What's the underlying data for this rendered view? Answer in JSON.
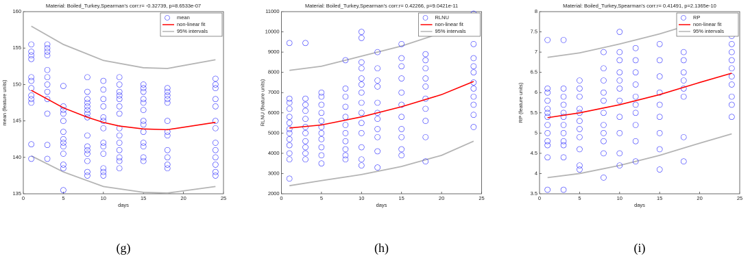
{
  "chart_data": [
    {
      "type": "scatter",
      "panel_label": "(g)",
      "title": "Material: Boiled_Turkey,Spearman's corr:r= -0.32739, p=8.6533e-07",
      "xlabel": "days",
      "ylabel": "mean (feature units)",
      "xlim": [
        0,
        25
      ],
      "xticks": [
        0,
        5,
        10,
        15,
        20,
        25
      ],
      "ylim": [
        135,
        160
      ],
      "yticks": [
        135,
        140,
        145,
        150,
        155,
        160
      ],
      "points": {
        "name": "mean",
        "color": "#3333ff",
        "x": [
          1,
          1,
          1,
          1,
          1,
          1,
          1,
          1,
          1,
          1,
          1,
          1,
          3,
          3,
          3,
          3,
          3,
          3,
          3,
          3,
          3,
          3,
          3,
          3,
          5,
          5,
          5,
          5,
          5,
          5,
          5,
          5,
          5,
          5,
          5,
          5,
          5,
          8,
          8,
          8,
          8,
          8,
          8,
          8,
          8,
          8,
          8,
          8,
          8,
          8,
          8,
          8,
          10,
          10,
          10,
          10,
          10,
          10,
          10,
          10,
          10,
          10,
          10,
          10,
          10,
          12,
          12,
          12,
          12,
          12,
          12,
          12,
          12,
          12,
          12,
          12,
          12,
          12,
          12,
          15,
          15,
          15,
          15,
          15,
          15,
          15,
          15,
          15,
          15,
          15,
          15,
          15,
          18,
          18,
          18,
          18,
          18,
          18,
          18,
          18,
          18,
          18,
          18,
          18,
          24,
          24,
          24,
          24,
          24,
          24,
          24,
          24,
          24,
          24,
          24,
          24,
          24
        ],
        "y": [
          155.5,
          154.5,
          154,
          153.5,
          151,
          150.5,
          149.5,
          148.5,
          148,
          147.5,
          141.8,
          139.8,
          155.5,
          155,
          154.5,
          154,
          152,
          151,
          150,
          149,
          148,
          146,
          141.7,
          139.8,
          149.8,
          147,
          146.5,
          146,
          145,
          143.5,
          142.5,
          142,
          141.5,
          140.5,
          139,
          138.5,
          135.5,
          151,
          149,
          148,
          147.5,
          147,
          146.5,
          146,
          145.5,
          143,
          141.5,
          141,
          140.5,
          139.5,
          138,
          137.5,
          150.5,
          149.3,
          148,
          147,
          145.5,
          145,
          144,
          142,
          141.5,
          140.5,
          138.5,
          138,
          137.5,
          151,
          150,
          149,
          148.5,
          148,
          147,
          146,
          144,
          143,
          142,
          141,
          140,
          139.5,
          138.5,
          150,
          149.5,
          149,
          148,
          147.5,
          146.5,
          145,
          144.5,
          143.5,
          142,
          141.5,
          140,
          139.5,
          149.5,
          149,
          148.5,
          148,
          147.5,
          145,
          143.5,
          143,
          141,
          140,
          139,
          138.5,
          150.8,
          150,
          149.5,
          148,
          147,
          145,
          144,
          142,
          141,
          140,
          139,
          138,
          137.5
        ]
      },
      "fit": {
        "name": "non-linear fit",
        "color": "#ff0000",
        "x": [
          1,
          5,
          8,
          10,
          12,
          15,
          18,
          24
        ],
        "y": [
          149.2,
          146.8,
          145.5,
          144.8,
          144.3,
          143.9,
          143.8,
          144.8
        ]
      },
      "intervals": {
        "name": "95% intervals",
        "color": "#b4b4b4",
        "x": [
          1,
          5,
          10,
          15,
          18,
          24
        ],
        "upper": [
          158,
          155.5,
          153.3,
          152.3,
          152.2,
          153.4
        ],
        "lower": [
          140.2,
          138,
          136,
          135.2,
          135.1,
          136
        ]
      }
    },
    {
      "type": "scatter",
      "panel_label": "(h)",
      "title": "Material: Boiled_Turkey,Spearman's corr:r= 0.42266, p=9.0421e-11",
      "xlabel": "days",
      "ylabel": "RLNU (feature units)",
      "xlim": [
        0,
        25
      ],
      "xticks": [
        0,
        5,
        10,
        15,
        20,
        25
      ],
      "ylim": [
        2000,
        11000
      ],
      "yticks": [
        2000,
        3000,
        4000,
        5000,
        6000,
        7000,
        8000,
        9000,
        10000,
        11000
      ],
      "points": {
        "name": "RLNU",
        "color": "#3333ff",
        "x": [
          1,
          1,
          1,
          1,
          1,
          1,
          1,
          1,
          1,
          1,
          1,
          1,
          1,
          3,
          3,
          3,
          3,
          3,
          3,
          3,
          3,
          3,
          3,
          3,
          5,
          5,
          5,
          5,
          5,
          5,
          5,
          5,
          5,
          5,
          5,
          8,
          8,
          8,
          8,
          8,
          8,
          8,
          8,
          8,
          8,
          8,
          10,
          10,
          10,
          10,
          10,
          10,
          10,
          10,
          10,
          10,
          10,
          10,
          10,
          10,
          12,
          12,
          12,
          12,
          12,
          12,
          12,
          12,
          12,
          12,
          12,
          15,
          15,
          15,
          15,
          15,
          15,
          15,
          15,
          15,
          15,
          15,
          18,
          18,
          18,
          18,
          18,
          18,
          18,
          18,
          18,
          18,
          24,
          24,
          24,
          24,
          24,
          24,
          24,
          24,
          24,
          24,
          24,
          24
        ],
        "y": [
          9450,
          6700,
          6500,
          6200,
          5800,
          5500,
          5200,
          5000,
          4700,
          4400,
          4000,
          3700,
          2750,
          9450,
          6700,
          6400,
          6100,
          5700,
          5300,
          5000,
          4600,
          4300,
          4000,
          3700,
          7000,
          6800,
          6400,
          6000,
          5600,
          5300,
          5000,
          4700,
          4300,
          3900,
          3500,
          8600,
          7200,
          6800,
          6300,
          5800,
          5400,
          5000,
          4600,
          4200,
          3900,
          3700,
          10000,
          9700,
          8500,
          8200,
          7700,
          7400,
          7000,
          6500,
          6000,
          5500,
          5000,
          4300,
          3700,
          3400,
          9000,
          8200,
          7600,
          7300,
          6500,
          6000,
          5700,
          5200,
          4800,
          4100,
          3300,
          9400,
          8700,
          8300,
          7700,
          7000,
          6400,
          5800,
          5200,
          4800,
          4200,
          3900,
          8900,
          8600,
          8200,
          7700,
          7300,
          6700,
          6200,
          5600,
          4800,
          3600,
          10900,
          10000,
          9400,
          8700,
          8300,
          8000,
          7500,
          7200,
          6800,
          6400,
          5900,
          5300
        ]
      },
      "fit": {
        "name": "non-linear fit",
        "color": "#ff0000",
        "x": [
          1,
          5,
          10,
          15,
          20,
          24
        ],
        "y": [
          5250,
          5400,
          5800,
          6300,
          6900,
          7550
        ]
      },
      "intervals": {
        "name": "95% intervals",
        "color": "#b4b4b4",
        "x": [
          1,
          5,
          10,
          15,
          20,
          24
        ],
        "upper": [
          8100,
          8300,
          8800,
          9300,
          9950,
          10700
        ],
        "lower": [
          2400,
          2650,
          2950,
          3350,
          3900,
          4600
        ]
      }
    },
    {
      "type": "scatter",
      "panel_label": "(i)",
      "title": "Material: Boiled_Turkey,Spearman's corr:r= 0.41491, p=2.1365e-10",
      "xlabel": "days",
      "ylabel": "RP (feature units)",
      "xlim": [
        0,
        25
      ],
      "xticks": [
        0,
        5,
        10,
        15,
        20,
        25
      ],
      "ylim": [
        3.5,
        8
      ],
      "yticks": [
        3.5,
        4,
        4.5,
        5,
        5.5,
        6,
        6.5,
        7,
        7.5,
        8
      ],
      "points": {
        "name": "RP",
        "color": "#3333ff",
        "x": [
          1,
          1,
          1,
          1,
          1,
          1,
          1,
          1,
          1,
          1,
          1,
          1,
          1,
          3,
          3,
          3,
          3,
          3,
          3,
          3,
          3,
          3,
          3,
          3,
          3,
          5,
          5,
          5,
          5,
          5,
          5,
          5,
          5,
          5,
          5,
          5,
          8,
          8,
          8,
          8,
          8,
          8,
          8,
          8,
          8,
          8,
          8,
          10,
          10,
          10,
          10,
          10,
          10,
          10,
          10,
          10,
          10,
          10,
          12,
          12,
          12,
          12,
          12,
          12,
          12,
          12,
          12,
          12,
          15,
          15,
          15,
          15,
          15,
          15,
          15,
          15,
          15,
          18,
          18,
          18,
          18,
          18,
          18,
          18,
          18,
          24,
          24,
          24,
          24,
          24,
          24,
          24,
          24,
          24,
          24
        ],
        "y": [
          7.3,
          6.1,
          6.0,
          5.8,
          5.6,
          5.5,
          5.4,
          5.2,
          5.0,
          4.8,
          4.7,
          4.4,
          3.6,
          7.3,
          6.1,
          5.9,
          5.7,
          5.5,
          5.4,
          5.2,
          5.0,
          4.8,
          4.7,
          4.4,
          3.6,
          6.3,
          6.1,
          5.9,
          5.6,
          5.5,
          5.3,
          5.1,
          4.9,
          4.6,
          4.2,
          4.1,
          7.0,
          6.6,
          6.3,
          6.0,
          5.8,
          5.5,
          5.2,
          5.0,
          4.8,
          4.5,
          3.9,
          7.5,
          7.0,
          6.8,
          6.5,
          6.3,
          6.1,
          5.8,
          5.4,
          5.0,
          4.5,
          4.2,
          7.1,
          6.8,
          6.5,
          6.2,
          5.9,
          5.7,
          5.5,
          5.2,
          4.8,
          4.3,
          7.2,
          6.8,
          6.4,
          6.0,
          5.7,
          5.4,
          5.0,
          4.6,
          4.1,
          7.0,
          6.8,
          6.5,
          6.3,
          6.1,
          5.9,
          4.9,
          4.3,
          7.4,
          7.2,
          7.0,
          6.8,
          6.6,
          6.4,
          6.2,
          5.9,
          5.7,
          5.4
        ]
      },
      "fit": {
        "name": "non-linear fit",
        "color": "#ff0000",
        "x": [
          1,
          5,
          10,
          15,
          20,
          24
        ],
        "y": [
          5.38,
          5.5,
          5.7,
          5.95,
          6.25,
          6.48
        ]
      },
      "intervals": {
        "name": "95% intervals",
        "color": "#b4b4b4",
        "x": [
          1,
          5,
          10,
          15,
          20,
          24
        ],
        "upper": [
          6.87,
          6.98,
          7.2,
          7.45,
          7.75,
          7.95
        ],
        "lower": [
          3.9,
          4.0,
          4.2,
          4.45,
          4.75,
          4.98
        ]
      }
    }
  ]
}
